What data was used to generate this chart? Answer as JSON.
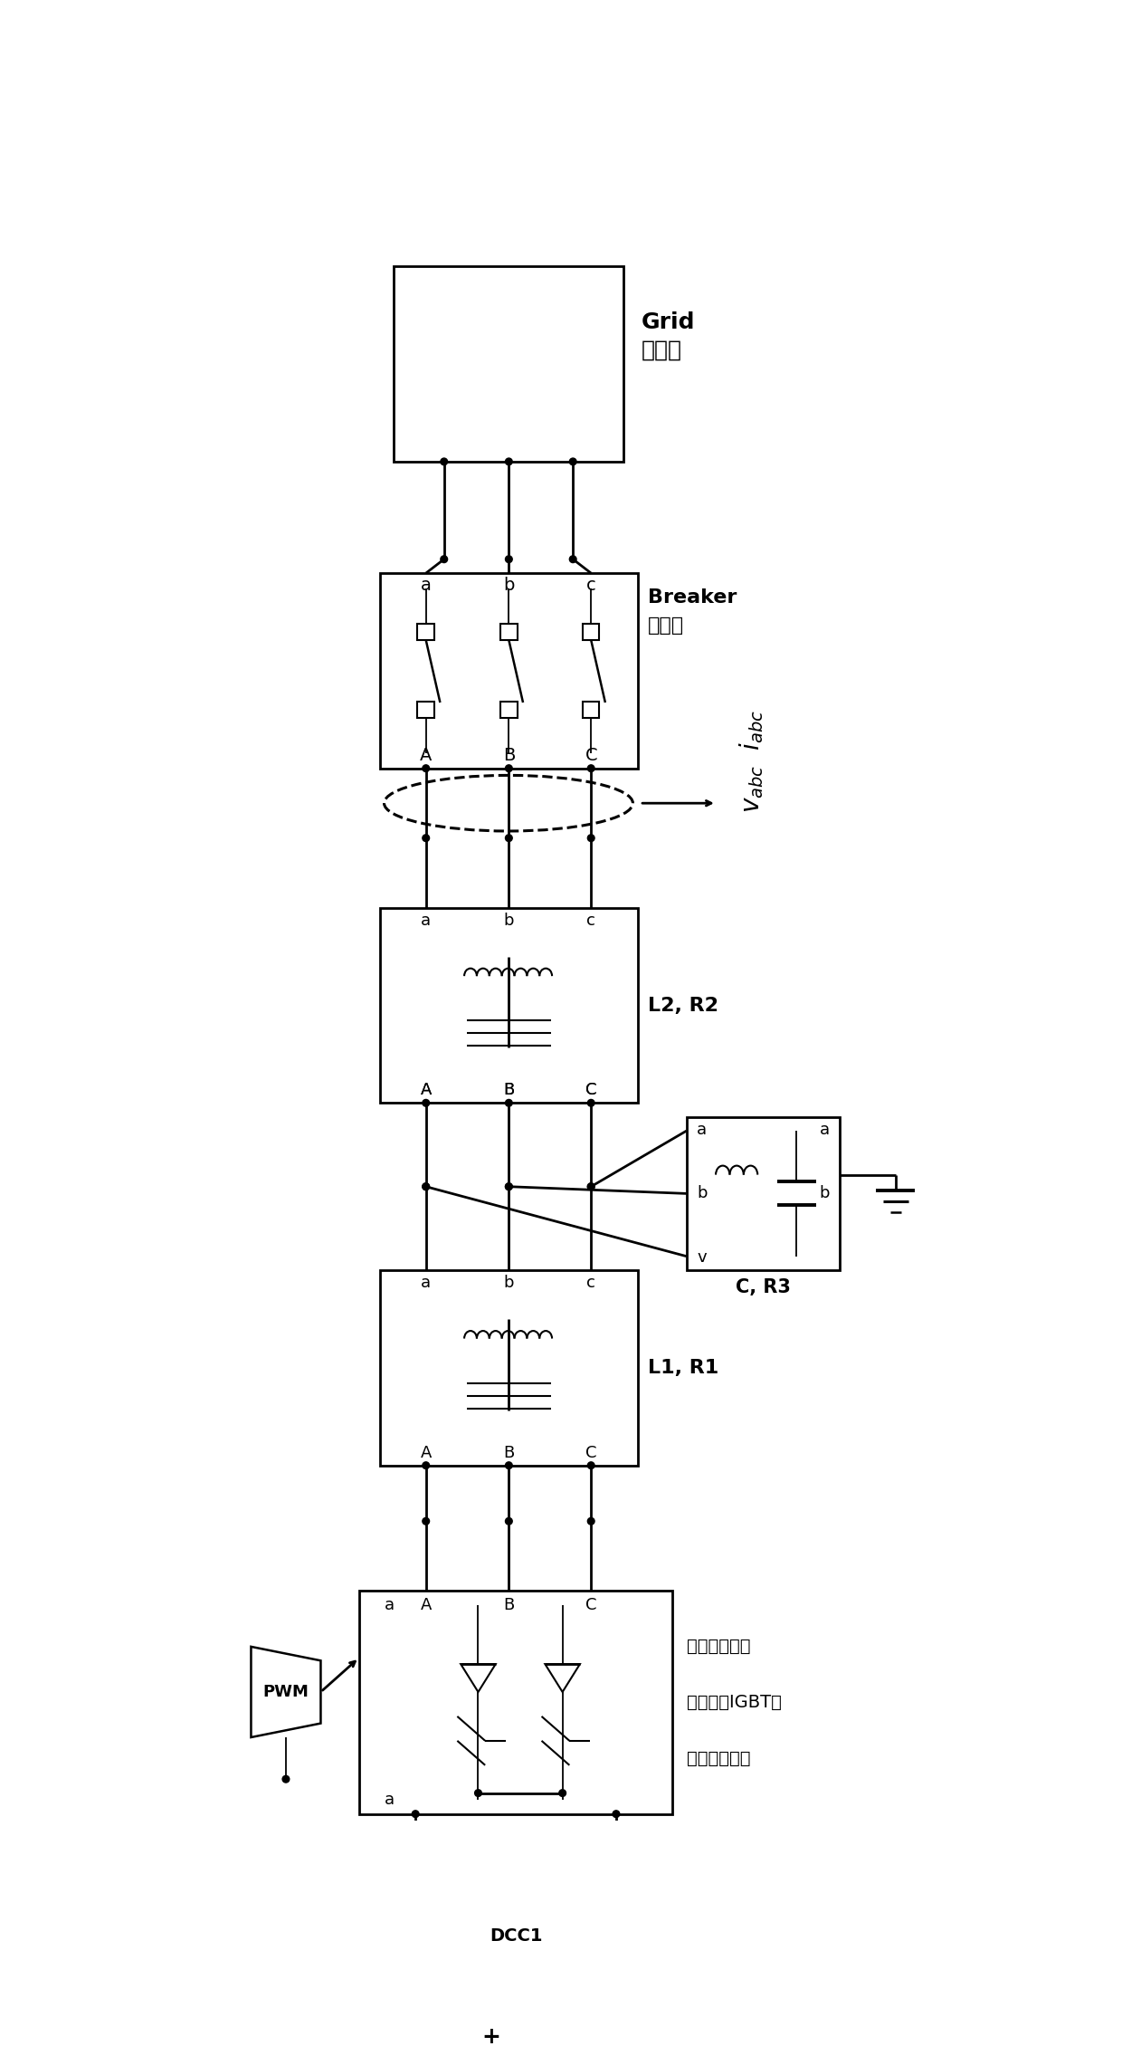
{
  "bg_color": "#ffffff",
  "lc": "#000000",
  "lw": 2.0,
  "lw_thin": 1.3,
  "fig_w": 12.4,
  "fig_h": 22.6,
  "grid_en": "Grid",
  "grid_cn": "大电网",
  "breaker_en": "Breaker",
  "breaker_cn": "断路器",
  "l2r2": "L2, R2",
  "l1r1": "L1, R1",
  "cr3": "C, R3",
  "igbt_line1": "维维梯双极型",
  "igbt_line2": "晶体管（IGBT）",
  "igbt_line3": "组成的逆变器",
  "pwm": "PWM",
  "dc": "DCC1",
  "plus": "+",
  "vabc": "$v_{abc}$",
  "iabc": "$i_{abc}$"
}
